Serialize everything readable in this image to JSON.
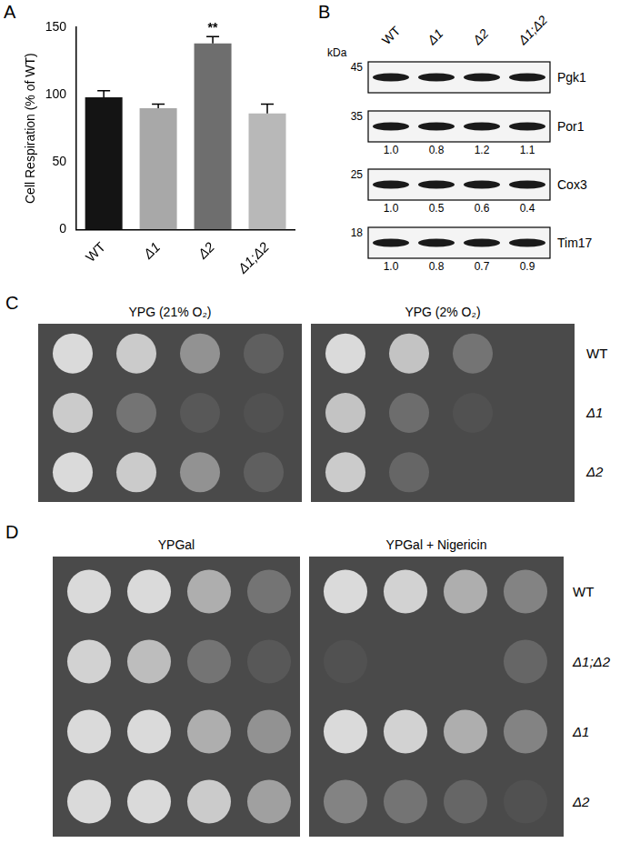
{
  "chart_data": {
    "type": "bar",
    "categories": [
      "WT",
      "Δ1",
      "Δ2",
      "Δ1;Δ2"
    ],
    "values": [
      98,
      90,
      138,
      86
    ],
    "errors": [
      5,
      3,
      5,
      7
    ],
    "colors": [
      "#141414",
      "#a8a8a8",
      "#6e6e6e",
      "#b8b8b8"
    ],
    "ylabel": "Cell Respiration (% of WT)",
    "ylim": [
      0,
      150
    ],
    "yticks": [
      0,
      50,
      100,
      150
    ],
    "grid": false,
    "annotations": [
      {
        "category": "Δ2",
        "text": "**"
      }
    ]
  },
  "panel_labels": [
    "A",
    "B",
    "C",
    "D"
  ],
  "western_blot": {
    "unit_label": "kDa",
    "lanes": [
      "WT",
      "Δ1",
      "Δ2",
      "Δ1;Δ2"
    ],
    "rows": [
      {
        "protein": "Pgk1",
        "marker_kDa": 45,
        "quantification": null
      },
      {
        "protein": "Por1",
        "marker_kDa": 35,
        "quantification": [
          "1.0",
          "0.8",
          "1.2",
          "1.1"
        ]
      },
      {
        "protein": "Cox3",
        "marker_kDa": 25,
        "quantification": [
          "1.0",
          "0.5",
          "0.6",
          "0.4"
        ]
      },
      {
        "protein": "Tim17",
        "marker_kDa": 18,
        "quantification": [
          "1.0",
          "0.8",
          "0.7",
          "0.9"
        ]
      }
    ]
  },
  "spot_assays": [
    {
      "strains": [
        "WT",
        "Δ1",
        "Δ2"
      ],
      "plates": [
        {
          "title": "YPG (21% O₂)",
          "spot_density": [
            [
              1,
              0.9,
              0.5,
              0.15
            ],
            [
              0.9,
              0.3,
              0.1,
              0.05
            ],
            [
              1,
              0.9,
              0.5,
              0.15
            ]
          ]
        },
        {
          "title": "YPG (2% O₂)",
          "spot_density": [
            [
              1,
              0.85,
              0.3,
              0
            ],
            [
              0.85,
              0.25,
              0.05,
              0
            ],
            [
              0.9,
              0.2,
              0,
              0
            ]
          ]
        }
      ]
    },
    {
      "strains": [
        "WT",
        "Δ1;Δ2",
        "Δ1",
        "Δ2"
      ],
      "plates": [
        {
          "title": "YPGal",
          "spot_density": [
            [
              1,
              1,
              0.7,
              0.3
            ],
            [
              0.95,
              0.8,
              0.3,
              0.1
            ],
            [
              1,
              1,
              0.7,
              0.5
            ],
            [
              1,
              1,
              0.9,
              0.6
            ]
          ]
        },
        {
          "title": "YPGal + Nigericin",
          "spot_density": [
            [
              1,
              0.95,
              0.7,
              0.4
            ],
            [
              0.05,
              0,
              0,
              0.2
            ],
            [
              1,
              0.95,
              0.7,
              0.4
            ],
            [
              0.4,
              0.3,
              0.2,
              0.05
            ]
          ]
        }
      ]
    }
  ]
}
